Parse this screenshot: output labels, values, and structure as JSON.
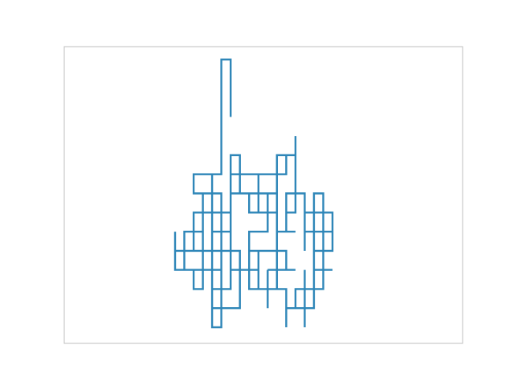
{
  "chart_data": {
    "type": "line",
    "title": "",
    "xlabel": "",
    "ylabel": "",
    "grid": false,
    "axes_visible": false,
    "xlim": [
      -30,
      30
    ],
    "ylim": [
      -22,
      22
    ],
    "series": [
      {
        "color": "#2e86b8",
        "points": [
          [
            0,
            33
          ],
          [
            0,
            34
          ],
          [
            0,
            35
          ],
          [
            0,
            36
          ],
          [
            -2,
            36
          ],
          [
            -2,
            33
          ],
          [
            -2,
            30
          ],
          [
            -4,
            30
          ],
          [
            -4,
            29
          ],
          [
            -2,
            29
          ],
          [
            -2,
            26
          ],
          [
            -4,
            26
          ],
          [
            -4,
            25
          ],
          [
            -2,
            25
          ],
          [
            -2,
            28
          ],
          [
            0,
            28
          ],
          [
            0,
            31
          ],
          [
            2,
            31
          ],
          [
            2,
            30
          ],
          [
            0,
            30
          ],
          [
            0,
            27
          ],
          [
            -2,
            27
          ],
          [
            -2,
            24
          ],
          [
            -4,
            24
          ],
          [
            -4,
            26
          ],
          [
            -6,
            26
          ],
          [
            -6,
            28
          ],
          [
            -4,
            28
          ],
          [
            -4,
            30
          ],
          [
            -8,
            30
          ],
          [
            -8,
            29
          ],
          [
            -6,
            29
          ],
          [
            -6,
            27
          ],
          [
            -8,
            27
          ],
          [
            -8,
            26
          ],
          [
            -10,
            26
          ],
          [
            -10,
            25
          ],
          [
            -8,
            25
          ],
          [
            -8,
            24
          ],
          [
            -6,
            24
          ],
          [
            -6,
            25
          ],
          [
            -4,
            25
          ],
          [
            -4,
            22
          ],
          [
            -2,
            22
          ],
          [
            -2,
            24
          ],
          [
            0,
            24
          ],
          [
            0,
            25
          ]
        ]
      }
    ]
  },
  "colors": {
    "line": "#2e86b8",
    "frame": "#bfbfbf",
    "background": "#ffffff"
  }
}
